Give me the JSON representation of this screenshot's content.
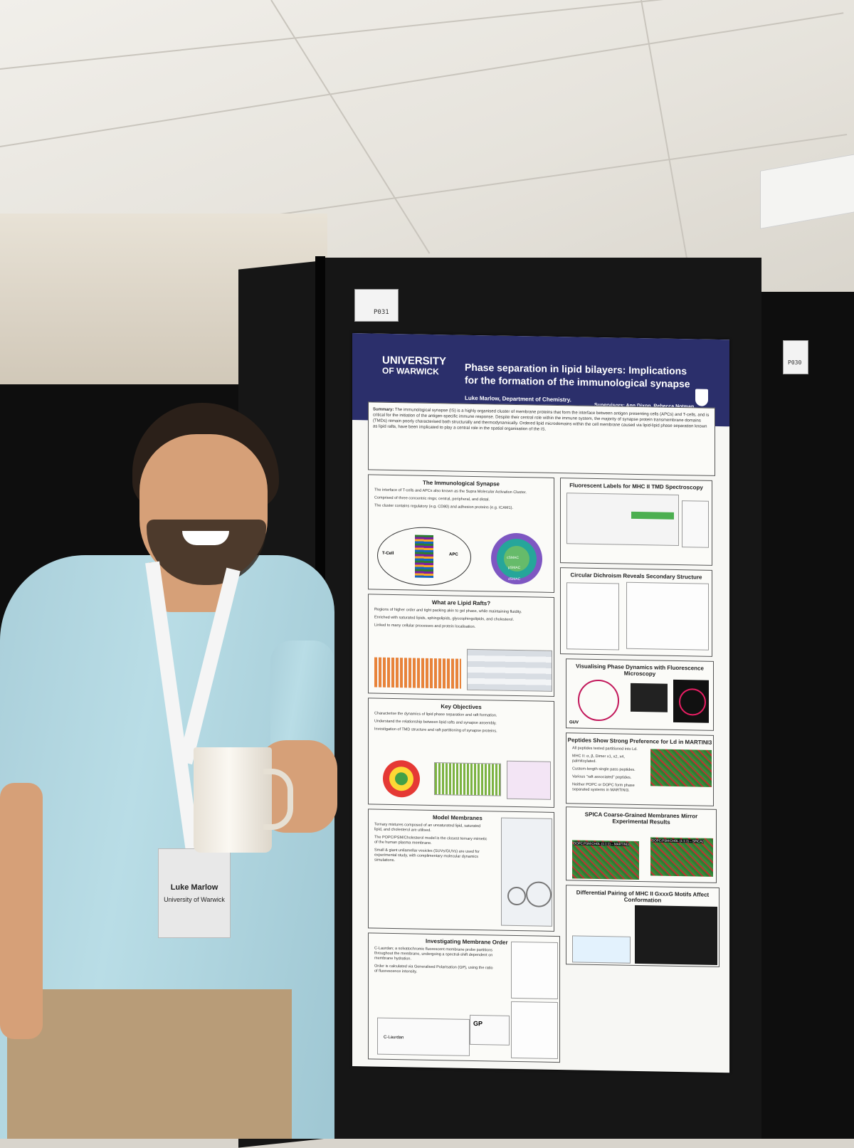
{
  "booth": {
    "main_label": "P031",
    "side_label": "P030"
  },
  "poster": {
    "university": "UNIVERSITY",
    "university_2": "OF WARWICK",
    "title": "Phase separation in lipid bilayers: Implications for the formation of the immunological synapse",
    "author": "Luke Marlow, Department of Chemistry.",
    "supervisors": "Supervisors: Ann Dixon, Rebecca Notman.",
    "summary_lead": "Summary:",
    "summary": "The immunological synapse (IS) is a highly organised cluster of membrane proteins that form the interface between antigen presenting cells (APCs) and T-cells, and is critical for the initiation of the antigen-specific immune response. Despite their central role within the immune system, the majority of synapse protein transmembrane domains (TMDs) remain poorly characterised both structurally and thermodynamically. Ordered lipid microdomains within the cell membrane caused via lipid-lipid phase separation known as lipid rafts, have been implicated to play a central role in the spatial organisation of the IS.",
    "sections": {
      "synapse": {
        "title": "The Immunological Synapse",
        "bullets": [
          "The interface of T-cells and APCs also known as the Supra Molecular Activation Cluster.",
          "Comprised of three concentric rings; central, peripheral, and distal.",
          "The cluster contains regulatory (e.g. CD80) and adhesion proteins (e.g. ICAM1)."
        ],
        "tcell": "T-Cell",
        "apc": "APC",
        "rings": [
          "cSMAC",
          "pSMAC",
          "dSMAC"
        ]
      },
      "rafts": {
        "title": "What are Lipid Rafts?",
        "bullets": [
          "Regions of higher order and tight packing akin to gel phase, while maintaining fluidity.",
          "Enriched with saturated lipids, sphingolipids, glycosphingolipids, and cholesterol.",
          "Linked to many cellular processes and protein localisation."
        ]
      },
      "objectives": {
        "title": "Key Objectives",
        "bullets": [
          "Characterise the dynamics of lipid phase separation and raft formation.",
          "Understand the relationship between lipid rafts and synapse assembly.",
          "Investigation of TMD structure and raft partitioning of synapse proteins."
        ]
      },
      "membranes": {
        "title": "Model Membranes",
        "bullets": [
          "Ternary mixtures composed of an unsaturated lipid, saturated lipid, and cholesterol are utilised.",
          "The POPC/PSM/Cholesterol model is the closest ternary mimetic of the human plasma membrane.",
          "Small & giant unilamellar vesicles (SUVs/GUVs) are used for experimental study, with complimentary molecular dynamics simulations."
        ]
      },
      "order": {
        "title": "Investigating Membrane Order",
        "bullets": [
          "C-Laurdan; a solvatochromic fluorescent membrane probe partitions throughout the membrane, undergoing a spectral-shift dependent on membrane hydration.",
          "Order is calculated via Generalised Polarisation (GP), using the ratio of fluorescence intensity."
        ],
        "gp_label": "GP",
        "probe": "C-Laurdan"
      },
      "fluor": {
        "title": "Fluorescent Labels for MHC II TMD Spectroscopy"
      },
      "cd": {
        "title": "Circular Dichroism Reveals Secondary Structure"
      },
      "microscopy": {
        "title": "Visualising Phase Dynamics with Fluorescence Microscopy",
        "tag": "GUV"
      },
      "martini": {
        "title": "Peptides Show Strong Preference for Ld in MARTINI3",
        "bullets": [
          "All peptides tested partitioned into Ld.",
          "MHC II: α, β, Dimer x1, x2, x4, palmitoylated.",
          "Custom-length single pass peptides.",
          "Various \"raft associated\" peptides.",
          "Neither POPC or DOPC form phase separated systems in MARTINI3."
        ]
      },
      "spica": {
        "title": "SPICA Coarse-Grained Membranes Mirror Experimental Results",
        "panel_left": "DOPC:PSM:CHOL (1:1:1) – MARTINI3",
        "panel_right": "DOPC:PSM:CHOL (1:1:1) – SPICA2"
      },
      "pairing": {
        "title": "Differential Pairing of MHC II GxxxG Motifs Affect Conformation"
      }
    }
  },
  "badge": {
    "name": "Luke Marlow",
    "affiliation": "University of Warwick"
  }
}
